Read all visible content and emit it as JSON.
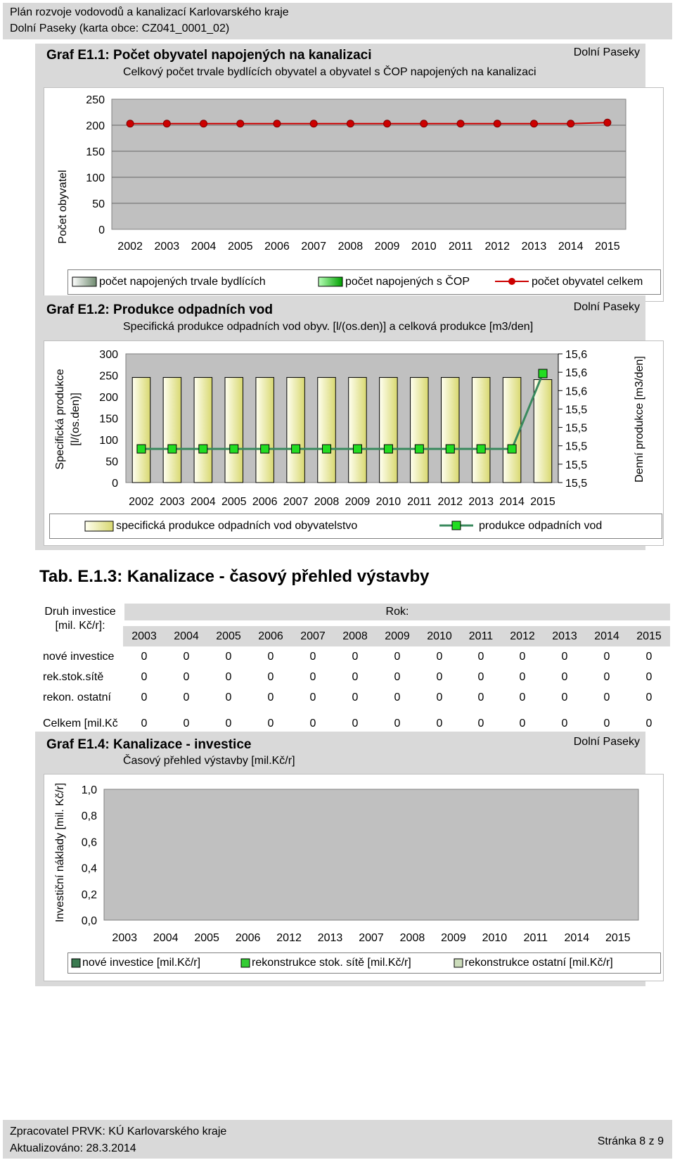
{
  "header": {
    "line1": "Plán rozvoje vodovodů a kanalizací Karlovarského kraje",
    "line2": "Dolní Paseky (karta obce: CZ041_0001_02)"
  },
  "graph1": {
    "title": "Graf E1.1: Počet obyvatel napojených na kanalizaci",
    "subtitle": "Celkový počet trvale bydlících obyvatel a obyvatel s ČOP napojených na kanalizaci",
    "location": "Dolní Paseky",
    "ylabel": "Počet obyvatel",
    "legend": [
      "počet napojených trvale bydlících",
      "počet napojených s ČOP",
      "počet obyvatel celkem"
    ]
  },
  "graph2": {
    "title": "Graf E1.2: Produkce odpadních vod",
    "subtitle": "Specifická produkce odpadních vod obyv. [l/(os.den)] a celková produkce [m3/den]",
    "location": "Dolní Paseky",
    "ylabel_left_1": "Specifická produkce",
    "ylabel_left_2": "[l/(os.den)]",
    "ylabel_right": "Denní produkce [m3/den]",
    "legend": [
      "specifická produkce odpadních vod obyvatelstvo",
      "produkce odpadních vod"
    ]
  },
  "table": {
    "title": "Tab. E.1.3: Kanalizace - časový přehled výstavby",
    "head_left_1": "Druh investice",
    "head_left_2": "[mil. Kč/r]:",
    "head_years_label": "Rok:",
    "years": [
      "2003",
      "2004",
      "2005",
      "2006",
      "2007",
      "2008",
      "2009",
      "2010",
      "2011",
      "2012",
      "2013",
      "2014",
      "2015"
    ],
    "rows": [
      {
        "label": "nové investice",
        "values": [
          "0",
          "0",
          "0",
          "0",
          "0",
          "0",
          "0",
          "0",
          "0",
          "0",
          "0",
          "0",
          "0"
        ]
      },
      {
        "label": "rek.stok.sítě",
        "values": [
          "0",
          "0",
          "0",
          "0",
          "0",
          "0",
          "0",
          "0",
          "0",
          "0",
          "0",
          "0",
          "0"
        ]
      },
      {
        "label": "rekon. ostatní",
        "values": [
          "0",
          "0",
          "0",
          "0",
          "0",
          "0",
          "0",
          "0",
          "0",
          "0",
          "0",
          "0",
          "0"
        ]
      }
    ],
    "total": {
      "label": "Celkem [mil.Kč",
      "values": [
        "0",
        "0",
        "0",
        "0",
        "0",
        "0",
        "0",
        "0",
        "0",
        "0",
        "0",
        "0",
        "0"
      ]
    }
  },
  "graph4": {
    "title": "Graf E1.4: Kanalizace - investice",
    "subtitle": "Časový přehled výstavby [mil.Kč/r]",
    "location": "Dolní Paseky",
    "ylabel": "Investiční náklady [mil. Kč/r]",
    "legend": [
      "nové investice [mil.Kč/r]",
      "rekonstrukce stok. sítě [mil.Kč/r]",
      "rekonstrukce ostatní [mil.Kč/r]"
    ]
  },
  "footer": {
    "line1": "Zpracovatel PRVK: KÚ Karlovarského kraje",
    "line2": "Aktualizováno: 28.3.2014",
    "page": "Stránka 8 z 9"
  },
  "chart_data": [
    {
      "type": "line",
      "title": "Graf E1.1: Počet obyvatel napojených na kanalizaci",
      "ylabel": "Počet obyvatel",
      "ylim": [
        0,
        250
      ],
      "yticks": [
        "0",
        "50",
        "100",
        "150",
        "200",
        "250"
      ],
      "categories": [
        "2002",
        "2003",
        "2004",
        "2005",
        "2006",
        "2007",
        "2008",
        "2009",
        "2010",
        "2011",
        "2012",
        "2013",
        "2014",
        "2015"
      ],
      "series": [
        {
          "name": "počet napojených trvale bydlících",
          "values": [
            0,
            0,
            0,
            0,
            0,
            0,
            0,
            0,
            0,
            0,
            0,
            0,
            0,
            0
          ],
          "color": "#8fa58f"
        },
        {
          "name": "počet napojených s ČOP",
          "values": [
            0,
            0,
            0,
            0,
            0,
            0,
            0,
            0,
            0,
            0,
            0,
            0,
            0,
            0
          ],
          "color": "#00c000"
        },
        {
          "name": "počet obyvatel celkem",
          "values": [
            203,
            203,
            203,
            203,
            203,
            203,
            203,
            203,
            203,
            203,
            203,
            203,
            203,
            205
          ],
          "color": "#cc0000"
        }
      ],
      "grid": true,
      "legend": "bottom"
    },
    {
      "type": "bar",
      "title": "Graf E1.2: Produkce odpadních vod",
      "categories": [
        "2002",
        "2003",
        "2004",
        "2005",
        "2006",
        "2007",
        "2008",
        "2009",
        "2010",
        "2011",
        "2012",
        "2013",
        "2014",
        "2015"
      ],
      "ylim": [
        0,
        300
      ],
      "yticks": [
        "0",
        "50",
        "100",
        "150",
        "200",
        "250",
        "300"
      ],
      "yticks_right": [
        "15,5",
        "15,5",
        "15,5",
        "15,5",
        "15,5",
        "15,6",
        "15,6",
        "15,6"
      ],
      "series": [
        {
          "name": "specifická produkce odpadních vod obyvatelstvo",
          "axis": "left",
          "values": [
            245,
            245,
            245,
            245,
            245,
            245,
            245,
            245,
            245,
            245,
            245,
            245,
            245,
            240
          ],
          "color": "#fefea8"
        },
        {
          "name": "produkce odpadních vod",
          "axis": "right",
          "values": [
            15.53,
            15.53,
            15.53,
            15.53,
            15.53,
            15.53,
            15.53,
            15.53,
            15.53,
            15.53,
            15.53,
            15.53,
            15.53,
            15.6
          ],
          "color": "#3a8a5e"
        }
      ],
      "legend": "bottom"
    },
    {
      "type": "bar",
      "title": "Graf E1.4: Kanalizace - investice",
      "ylabel": "Investiční náklady [mil. Kč/r]",
      "ylim": [
        0,
        1
      ],
      "yticks": [
        "0,0",
        "0,2",
        "0,4",
        "0,6",
        "0,8",
        "1,0"
      ],
      "categories": [
        "2003",
        "2004",
        "2005",
        "2006",
        "2012",
        "2013",
        "2007",
        "2008",
        "2009",
        "2010",
        "2011",
        "2014",
        "2015"
      ],
      "series": [
        {
          "name": "nové investice [mil.Kč/r]",
          "values": [
            0,
            0,
            0,
            0,
            0,
            0,
            0,
            0,
            0,
            0,
            0,
            0,
            0
          ],
          "color": "#3a7a50"
        },
        {
          "name": "rekonstrukce stok. sítě [mil.Kč/r]",
          "values": [
            0,
            0,
            0,
            0,
            0,
            0,
            0,
            0,
            0,
            0,
            0,
            0,
            0
          ],
          "color": "#33cc33"
        },
        {
          "name": "rekonstrukce ostatní [mil.Kč/r]",
          "values": [
            0,
            0,
            0,
            0,
            0,
            0,
            0,
            0,
            0,
            0,
            0,
            0,
            0
          ],
          "color": "#ccddbb"
        }
      ],
      "legend": "bottom"
    }
  ]
}
